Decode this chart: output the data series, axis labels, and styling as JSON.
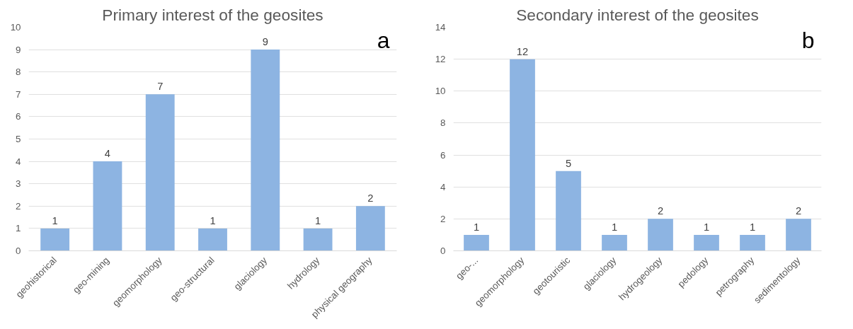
{
  "chart_data": [
    {
      "type": "bar",
      "title": "Primary interest of the geosites",
      "annotations": [
        "a"
      ],
      "categories": [
        "geohistorical",
        "geo-mining",
        "geomorphology",
        "geo-structural",
        "glaciology",
        "hydrology",
        "physical geography"
      ],
      "values": [
        1,
        4,
        7,
        1,
        9,
        1,
        2
      ],
      "color": "#8db4e2",
      "ylim": [
        0,
        10
      ],
      "yticks": [
        0,
        1,
        2,
        3,
        4,
        5,
        6,
        7,
        8,
        9,
        10
      ],
      "grid": "y",
      "data_labels": true
    },
    {
      "type": "bar",
      "title": "Secondary interest of the geosites",
      "annotations": [
        "b"
      ],
      "categories": [
        "geo-...",
        "geomorphology",
        "geotouristic",
        "glaciology",
        "hydrogeology",
        "pedology",
        "petrography",
        "sedimentology"
      ],
      "values": [
        1,
        12,
        5,
        1,
        2,
        1,
        1,
        2
      ],
      "color": "#8db4e2",
      "ylim": [
        0,
        14
      ],
      "yticks": [
        0,
        2,
        4,
        6,
        8,
        10,
        12,
        14
      ],
      "grid": "y",
      "data_labels": true
    }
  ]
}
